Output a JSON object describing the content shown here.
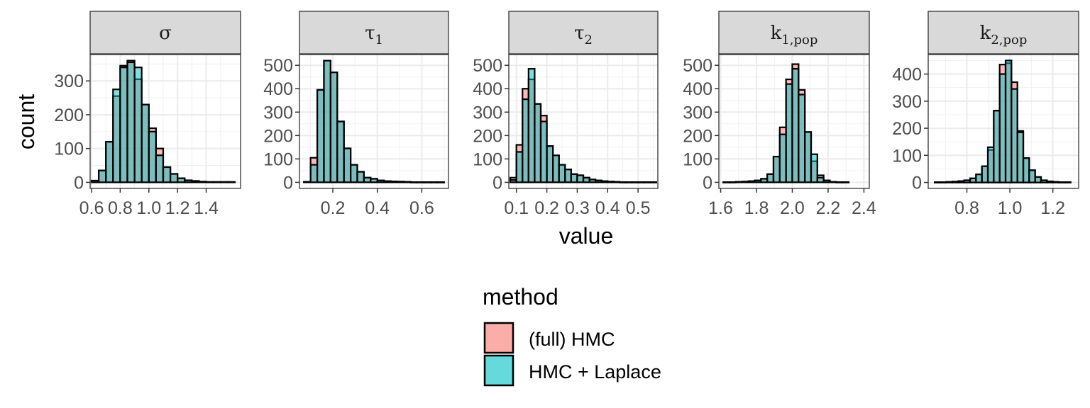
{
  "chart_data": {
    "type": "bar",
    "xlabel": "value",
    "ylabel": "count",
    "grid": true,
    "legend": {
      "title": "method",
      "position": "bottom",
      "entries": [
        {
          "label": "(full) HMC",
          "color": "#F8766D"
        },
        {
          "label": "HMC + Laplace",
          "color": "#00BFC4"
        }
      ]
    },
    "panels": [
      {
        "strip_main": "σ",
        "strip_sub": "",
        "xlim": [
          0.59,
          1.64
        ],
        "ylim": [
          -18,
          378
        ],
        "x_ticks": [
          0.6,
          0.8,
          1.0,
          1.2,
          1.4
        ],
        "x_tick_labels": [
          "0.6",
          "0.8",
          "1.0",
          "1.2",
          "1.4"
        ],
        "y_ticks": [
          0,
          100,
          200,
          300
        ],
        "bin_width": 0.05,
        "bins": [
          0.625,
          0.675,
          0.725,
          0.775,
          0.825,
          0.875,
          0.925,
          0.975,
          1.025,
          1.075,
          1.125,
          1.175,
          1.225,
          1.275,
          1.325,
          1.375,
          1.425,
          1.475,
          1.525,
          1.575
        ],
        "series": [
          {
            "name": "(full) HMC",
            "values": [
              5,
              35,
              120,
              255,
              345,
              360,
              305,
              230,
              160,
              100,
              45,
              25,
              12,
              6,
              4,
              2,
              1,
              1,
              1,
              1
            ]
          },
          {
            "name": "HMC + Laplace",
            "values": [
              5,
              35,
              120,
              275,
              340,
              355,
              340,
              230,
              150,
              80,
              45,
              25,
              12,
              6,
              4,
              2,
              1,
              1,
              1,
              1
            ]
          }
        ]
      },
      {
        "strip_main": "τ",
        "strip_sub": "1",
        "xlim": [
          0.05,
          0.72
        ],
        "ylim": [
          -26,
          546
        ],
        "x_ticks": [
          0.2,
          0.4,
          0.6
        ],
        "x_tick_labels": [
          "0.2",
          "0.4",
          "0.6"
        ],
        "y_ticks": [
          0,
          100,
          200,
          300,
          400,
          500
        ],
        "bin_width": 0.03,
        "bins": [
          0.085,
          0.115,
          0.145,
          0.175,
          0.205,
          0.235,
          0.265,
          0.295,
          0.325,
          0.355,
          0.385,
          0.415,
          0.445,
          0.475,
          0.505,
          0.535,
          0.565,
          0.595,
          0.625,
          0.655,
          0.685
        ],
        "series": [
          {
            "name": "(full) HMC",
            "values": [
              2,
              105,
              395,
              520,
              470,
              260,
              145,
              75,
              45,
              20,
              15,
              8,
              5,
              4,
              3,
              2,
              1,
              1,
              1,
              1,
              1
            ]
          },
          {
            "name": "HMC + Laplace",
            "values": [
              2,
              75,
              395,
              520,
              470,
              260,
              145,
              75,
              45,
              20,
              15,
              8,
              5,
              4,
              3,
              2,
              1,
              1,
              1,
              1,
              1
            ]
          }
        ]
      },
      {
        "strip_main": "τ",
        "strip_sub": "2",
        "xlim": [
          0.075,
          0.565
        ],
        "ylim": [
          -26,
          546
        ],
        "x_ticks": [
          0.1,
          0.2,
          0.3,
          0.4,
          0.5
        ],
        "x_tick_labels": [
          "0.1",
          "0.2",
          "0.3",
          "0.4",
          "0.5"
        ],
        "y_ticks": [
          0,
          100,
          200,
          300,
          400,
          500
        ],
        "bin_width": 0.02,
        "bins": [
          0.09,
          0.11,
          0.13,
          0.15,
          0.17,
          0.19,
          0.21,
          0.23,
          0.25,
          0.27,
          0.29,
          0.31,
          0.33,
          0.35,
          0.37,
          0.39,
          0.41,
          0.43,
          0.45,
          0.47,
          0.49,
          0.51,
          0.53,
          0.55
        ],
        "series": [
          {
            "name": "(full) HMC",
            "values": [
              20,
              160,
              400,
              440,
              335,
              285,
              155,
              115,
              75,
              55,
              35,
              30,
              20,
              12,
              8,
              5,
              3,
              2,
              1,
              1,
              1,
              1,
              1,
              1
            ]
          },
          {
            "name": "HMC + Laplace",
            "values": [
              10,
              130,
              355,
              485,
              335,
              260,
              155,
              115,
              75,
              55,
              35,
              30,
              20,
              12,
              8,
              5,
              3,
              2,
              1,
              1,
              1,
              1,
              1,
              1
            ]
          }
        ]
      },
      {
        "strip_main": "k",
        "strip_sub": "1,pop",
        "xlim": [
          1.59,
          2.43
        ],
        "ylim": [
          -26,
          546
        ],
        "x_ticks": [
          1.6,
          1.8,
          2.0,
          2.2,
          2.4
        ],
        "x_tick_labels": [
          "1.6",
          "1.8",
          "2.0",
          "2.2",
          "2.4"
        ],
        "y_ticks": [
          0,
          100,
          200,
          300,
          400,
          500
        ],
        "bin_width": 0.035,
        "bins": [
          1.6325,
          1.6675,
          1.7025,
          1.7375,
          1.7725,
          1.8075,
          1.8425,
          1.8775,
          1.9125,
          1.9475,
          1.9825,
          2.0175,
          2.0525,
          2.0875,
          2.1225,
          2.1575,
          2.1925,
          2.2275,
          2.2625,
          2.2975
        ],
        "series": [
          {
            "name": "(full) HMC",
            "values": [
              1,
              1,
              2,
              3,
              5,
              8,
              15,
              35,
              110,
              235,
              440,
              505,
              395,
              215,
              90,
              30,
              8,
              2,
              1,
              1
            ]
          },
          {
            "name": "HMC + Laplace",
            "values": [
              1,
              1,
              2,
              3,
              5,
              8,
              15,
              35,
              110,
              205,
              420,
              485,
              375,
              215,
              120,
              20,
              8,
              2,
              1,
              1
            ]
          }
        ]
      },
      {
        "strip_main": "k",
        "strip_sub": "2,pop",
        "xlim": [
          0.62,
          1.32
        ],
        "ylim": [
          -22,
          472
        ],
        "x_ticks": [
          0.8,
          1.0,
          1.2
        ],
        "x_tick_labels": [
          "0.8",
          "1.0",
          "1.2"
        ],
        "y_ticks": [
          0,
          100,
          200,
          300,
          400
        ],
        "bin_width": 0.0275,
        "bins": [
          0.66375,
          0.69125,
          0.71875,
          0.74625,
          0.77375,
          0.80125,
          0.82875,
          0.85625,
          0.88375,
          0.91125,
          0.93875,
          0.96625,
          0.99375,
          1.02125,
          1.04875,
          1.07625,
          1.10375,
          1.13125,
          1.15875,
          1.18625,
          1.21375,
          1.24125,
          1.26875
        ],
        "series": [
          {
            "name": "(full) HMC",
            "values": [
              1,
              1,
              2,
              3,
              5,
              8,
              15,
              30,
              60,
              120,
              265,
              435,
              440,
              370,
              190,
              90,
              45,
              20,
              8,
              4,
              2,
              1,
              1
            ]
          },
          {
            "name": "HMC + Laplace",
            "values": [
              1,
              1,
              2,
              3,
              5,
              8,
              15,
              30,
              60,
              130,
              265,
              400,
              450,
              345,
              185,
              90,
              45,
              20,
              8,
              4,
              2,
              1,
              1
            ]
          }
        ]
      }
    ]
  }
}
